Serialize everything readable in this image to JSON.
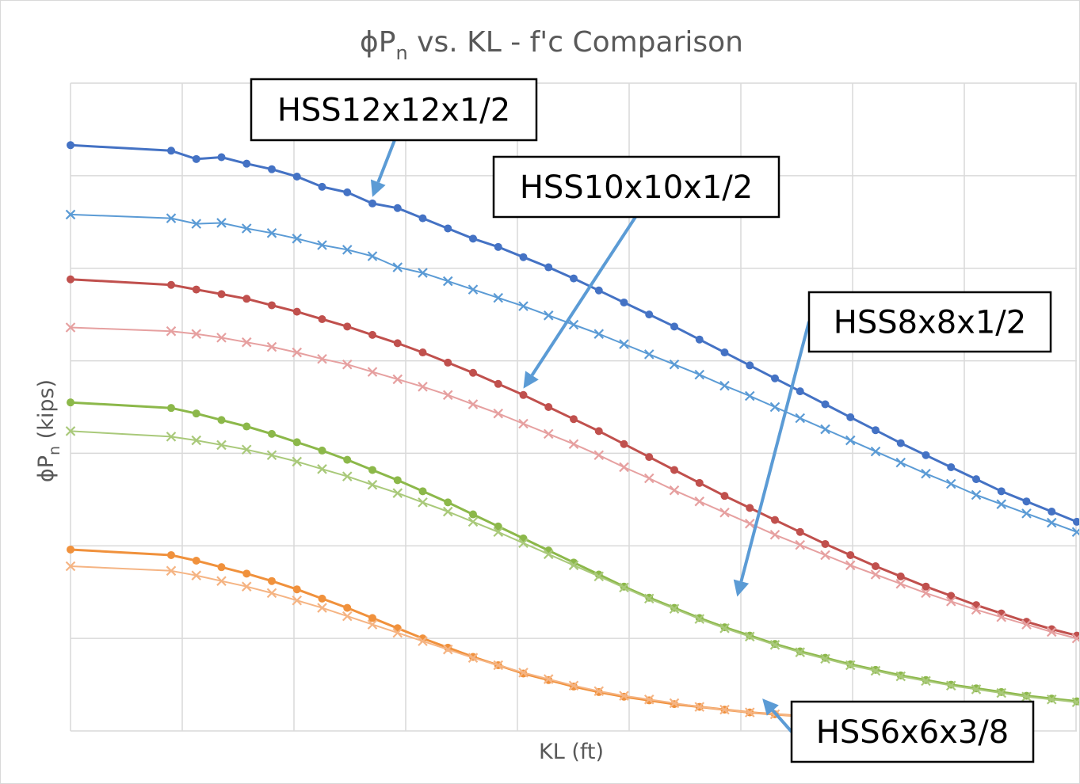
{
  "chart_data": {
    "type": "line",
    "title": {
      "main": "ϕP",
      "sub": "n",
      "rest": " vs. KL - f'c Comparison"
    },
    "xlabel": "KL (ft)",
    "ylabel": {
      "main": "ϕP",
      "sub": "n",
      "rest": " (kips)"
    },
    "grid": true,
    "colors": {
      "HSS12x12x1/2": "#4472c4",
      "HSS12x12x1/2 (x)": "#5b9bd5",
      "HSS10x10x1/2": "#c0504d",
      "HSS10x10x1/2 (x)": "#e6a0a0",
      "HSS8x8x1/2": "#8cb84a",
      "HSS8x8x1/2 (x)": "#a9c97a",
      "HSS6x6x3/8": "#f0913c",
      "HSS6x6x3/8 (x)": "#f5b483"
    },
    "series": [
      {
        "group": "HSS12x12x1/2",
        "marker": "dot",
        "color": "#4472c4",
        "values": [
          [
            0,
            6.33
          ],
          [
            0.8,
            6.27
          ],
          [
            1,
            6.18
          ],
          [
            1.2,
            6.2
          ],
          [
            1.4,
            6.13
          ],
          [
            1.6,
            6.07
          ],
          [
            1.8,
            5.99
          ],
          [
            2,
            5.88
          ],
          [
            2.2,
            5.82
          ],
          [
            2.4,
            5.7
          ],
          [
            2.6,
            5.65
          ],
          [
            2.8,
            5.54
          ],
          [
            3,
            5.43
          ],
          [
            3.2,
            5.32
          ],
          [
            3.4,
            5.23
          ],
          [
            3.6,
            5.12
          ],
          [
            3.8,
            5.01
          ],
          [
            4,
            4.89
          ],
          [
            4.2,
            4.76
          ],
          [
            4.4,
            4.63
          ],
          [
            4.6,
            4.5
          ],
          [
            4.8,
            4.37
          ],
          [
            5,
            4.23
          ],
          [
            5.2,
            4.09
          ],
          [
            5.4,
            3.95
          ],
          [
            5.6,
            3.81
          ],
          [
            5.8,
            3.67
          ],
          [
            6,
            3.53
          ],
          [
            6.2,
            3.39
          ],
          [
            6.4,
            3.25
          ],
          [
            6.6,
            3.11
          ],
          [
            6.8,
            2.98
          ],
          [
            7,
            2.85
          ],
          [
            7.2,
            2.72
          ],
          [
            7.4,
            2.59
          ],
          [
            7.6,
            2.48
          ],
          [
            7.8,
            2.37
          ],
          [
            8,
            2.26
          ]
        ]
      },
      {
        "group": "HSS12x12x1/2",
        "marker": "cross",
        "color": "#5b9bd5",
        "values": [
          [
            0,
            5.58
          ],
          [
            0.8,
            5.54
          ],
          [
            1,
            5.48
          ],
          [
            1.2,
            5.49
          ],
          [
            1.4,
            5.43
          ],
          [
            1.6,
            5.38
          ],
          [
            1.8,
            5.32
          ],
          [
            2,
            5.25
          ],
          [
            2.2,
            5.2
          ],
          [
            2.4,
            5.13
          ],
          [
            2.6,
            5.01
          ],
          [
            2.8,
            4.95
          ],
          [
            3,
            4.86
          ],
          [
            3.2,
            4.77
          ],
          [
            3.4,
            4.68
          ],
          [
            3.6,
            4.59
          ],
          [
            3.8,
            4.49
          ],
          [
            4,
            4.39
          ],
          [
            4.2,
            4.29
          ],
          [
            4.4,
            4.18
          ],
          [
            4.6,
            4.07
          ],
          [
            4.8,
            3.96
          ],
          [
            5,
            3.85
          ],
          [
            5.2,
            3.73
          ],
          [
            5.4,
            3.62
          ],
          [
            5.6,
            3.5
          ],
          [
            5.8,
            3.38
          ],
          [
            6,
            3.26
          ],
          [
            6.2,
            3.14
          ],
          [
            6.4,
            3.02
          ],
          [
            6.6,
            2.9
          ],
          [
            6.8,
            2.78
          ],
          [
            7,
            2.67
          ],
          [
            7.2,
            2.55
          ],
          [
            7.4,
            2.45
          ],
          [
            7.6,
            2.35
          ],
          [
            7.8,
            2.25
          ],
          [
            8,
            2.15
          ]
        ]
      },
      {
        "group": "HSS10x10x1/2",
        "marker": "dot",
        "color": "#c0504d",
        "values": [
          [
            0,
            4.88
          ],
          [
            0.8,
            4.82
          ],
          [
            1,
            4.77
          ],
          [
            1.2,
            4.72
          ],
          [
            1.4,
            4.67
          ],
          [
            1.6,
            4.6
          ],
          [
            1.8,
            4.53
          ],
          [
            2,
            4.45
          ],
          [
            2.2,
            4.37
          ],
          [
            2.4,
            4.28
          ],
          [
            2.6,
            4.19
          ],
          [
            2.8,
            4.09
          ],
          [
            3,
            3.98
          ],
          [
            3.2,
            3.87
          ],
          [
            3.4,
            3.75
          ],
          [
            3.6,
            3.63
          ],
          [
            3.8,
            3.5
          ],
          [
            4,
            3.37
          ],
          [
            4.2,
            3.24
          ],
          [
            4.4,
            3.1
          ],
          [
            4.6,
            2.96
          ],
          [
            4.8,
            2.82
          ],
          [
            5,
            2.68
          ],
          [
            5.2,
            2.54
          ],
          [
            5.4,
            2.41
          ],
          [
            5.6,
            2.28
          ],
          [
            5.8,
            2.15
          ],
          [
            6,
            2.02
          ],
          [
            6.2,
            1.9
          ],
          [
            6.4,
            1.78
          ],
          [
            6.6,
            1.67
          ],
          [
            6.8,
            1.56
          ],
          [
            7,
            1.46
          ],
          [
            7.2,
            1.36
          ],
          [
            7.4,
            1.27
          ],
          [
            7.6,
            1.18
          ],
          [
            7.8,
            1.1
          ],
          [
            8,
            1.03
          ]
        ]
      },
      {
        "group": "HSS10x10x1/2",
        "marker": "cross",
        "color": "#e6a0a0",
        "values": [
          [
            0,
            4.36
          ],
          [
            0.8,
            4.32
          ],
          [
            1,
            4.29
          ],
          [
            1.2,
            4.25
          ],
          [
            1.4,
            4.2
          ],
          [
            1.6,
            4.15
          ],
          [
            1.8,
            4.09
          ],
          [
            2,
            4.02
          ],
          [
            2.2,
            3.96
          ],
          [
            2.4,
            3.88
          ],
          [
            2.6,
            3.8
          ],
          [
            2.8,
            3.72
          ],
          [
            3,
            3.63
          ],
          [
            3.2,
            3.53
          ],
          [
            3.4,
            3.43
          ],
          [
            3.6,
            3.32
          ],
          [
            3.8,
            3.21
          ],
          [
            4,
            3.1
          ],
          [
            4.2,
            2.98
          ],
          [
            4.4,
            2.85
          ],
          [
            4.6,
            2.73
          ],
          [
            4.8,
            2.6
          ],
          [
            5,
            2.48
          ],
          [
            5.2,
            2.36
          ],
          [
            5.4,
            2.24
          ],
          [
            5.6,
            2.12
          ],
          [
            5.8,
            2.01
          ],
          [
            6,
            1.9
          ],
          [
            6.2,
            1.79
          ],
          [
            6.4,
            1.69
          ],
          [
            6.6,
            1.59
          ],
          [
            6.8,
            1.49
          ],
          [
            7,
            1.4
          ],
          [
            7.2,
            1.31
          ],
          [
            7.4,
            1.23
          ],
          [
            7.6,
            1.15
          ],
          [
            7.8,
            1.07
          ],
          [
            8,
            1.0
          ]
        ]
      },
      {
        "group": "HSS8x8x1/2",
        "marker": "dot",
        "color": "#8cb84a",
        "values": [
          [
            0,
            3.55
          ],
          [
            0.8,
            3.49
          ],
          [
            1,
            3.43
          ],
          [
            1.2,
            3.36
          ],
          [
            1.4,
            3.29
          ],
          [
            1.6,
            3.21
          ],
          [
            1.8,
            3.12
          ],
          [
            2,
            3.03
          ],
          [
            2.2,
            2.93
          ],
          [
            2.4,
            2.82
          ],
          [
            2.6,
            2.71
          ],
          [
            2.8,
            2.59
          ],
          [
            3,
            2.47
          ],
          [
            3.2,
            2.34
          ],
          [
            3.4,
            2.21
          ],
          [
            3.6,
            2.08
          ],
          [
            3.8,
            1.95
          ],
          [
            4,
            1.82
          ],
          [
            4.2,
            1.69
          ],
          [
            4.4,
            1.56
          ],
          [
            4.6,
            1.44
          ],
          [
            4.8,
            1.33
          ],
          [
            5,
            1.22
          ],
          [
            5.2,
            1.12
          ],
          [
            5.4,
            1.03
          ],
          [
            5.6,
            0.94
          ],
          [
            5.8,
            0.86
          ],
          [
            6,
            0.79
          ],
          [
            6.2,
            0.72
          ],
          [
            6.4,
            0.66
          ],
          [
            6.6,
            0.6
          ],
          [
            6.8,
            0.55
          ],
          [
            7,
            0.5
          ],
          [
            7.2,
            0.46
          ],
          [
            7.4,
            0.42
          ],
          [
            7.6,
            0.38
          ],
          [
            7.8,
            0.35
          ],
          [
            8,
            0.32
          ]
        ]
      },
      {
        "group": "HSS8x8x1/2",
        "marker": "cross",
        "color": "#a9c97a",
        "values": [
          [
            0,
            3.24
          ],
          [
            0.8,
            3.18
          ],
          [
            1,
            3.14
          ],
          [
            1.2,
            3.09
          ],
          [
            1.4,
            3.04
          ],
          [
            1.6,
            2.98
          ],
          [
            1.8,
            2.91
          ],
          [
            2,
            2.83
          ],
          [
            2.2,
            2.75
          ],
          [
            2.4,
            2.66
          ],
          [
            2.6,
            2.57
          ],
          [
            2.8,
            2.47
          ],
          [
            3,
            2.37
          ],
          [
            3.2,
            2.26
          ],
          [
            3.4,
            2.15
          ],
          [
            3.6,
            2.03
          ],
          [
            3.8,
            1.91
          ],
          [
            4,
            1.79
          ],
          [
            4.2,
            1.67
          ],
          [
            4.4,
            1.55
          ],
          [
            4.6,
            1.43
          ],
          [
            4.8,
            1.32
          ],
          [
            5,
            1.21
          ],
          [
            5.2,
            1.11
          ],
          [
            5.4,
            1.02
          ],
          [
            5.6,
            0.93
          ],
          [
            5.8,
            0.85
          ],
          [
            6,
            0.78
          ],
          [
            6.2,
            0.71
          ],
          [
            6.4,
            0.65
          ],
          [
            6.6,
            0.59
          ],
          [
            6.8,
            0.54
          ],
          [
            7,
            0.49
          ],
          [
            7.2,
            0.45
          ],
          [
            7.4,
            0.41
          ],
          [
            7.6,
            0.37
          ],
          [
            7.8,
            0.34
          ],
          [
            8,
            0.31
          ]
        ]
      },
      {
        "group": "HSS6x6x3/8",
        "marker": "dot",
        "color": "#f0913c",
        "values": [
          [
            0,
            1.96
          ],
          [
            0.8,
            1.9
          ],
          [
            1,
            1.84
          ],
          [
            1.2,
            1.77
          ],
          [
            1.4,
            1.7
          ],
          [
            1.6,
            1.62
          ],
          [
            1.8,
            1.53
          ],
          [
            2,
            1.43
          ],
          [
            2.2,
            1.33
          ],
          [
            2.4,
            1.22
          ],
          [
            2.6,
            1.11
          ],
          [
            2.8,
            1.0
          ],
          [
            3,
            0.9
          ],
          [
            3.2,
            0.8
          ],
          [
            3.4,
            0.71
          ],
          [
            3.6,
            0.62
          ],
          [
            3.8,
            0.55
          ],
          [
            4,
            0.48
          ],
          [
            4.2,
            0.42
          ],
          [
            4.4,
            0.37
          ],
          [
            4.6,
            0.33
          ],
          [
            4.8,
            0.29
          ],
          [
            5,
            0.26
          ],
          [
            5.2,
            0.23
          ],
          [
            5.4,
            0.2
          ],
          [
            5.6,
            0.18
          ],
          [
            5.8,
            0.16
          ],
          [
            6,
            0.14
          ],
          [
            6.2,
            0.12
          ],
          [
            6.4,
            0.11
          ],
          [
            6.6,
            0.1
          ],
          [
            6.8,
            0.09
          ],
          [
            7,
            0.08
          ]
        ]
      },
      {
        "group": "HSS6x6x3/8",
        "marker": "cross",
        "color": "#f5b483",
        "values": [
          [
            0,
            1.78
          ],
          [
            0.8,
            1.73
          ],
          [
            1,
            1.68
          ],
          [
            1.2,
            1.62
          ],
          [
            1.4,
            1.56
          ],
          [
            1.6,
            1.49
          ],
          [
            1.8,
            1.41
          ],
          [
            2,
            1.33
          ],
          [
            2.2,
            1.24
          ],
          [
            2.4,
            1.15
          ],
          [
            2.6,
            1.06
          ],
          [
            2.8,
            0.97
          ],
          [
            3,
            0.88
          ],
          [
            3.2,
            0.79
          ],
          [
            3.4,
            0.71
          ],
          [
            3.6,
            0.63
          ],
          [
            3.8,
            0.56
          ],
          [
            4,
            0.49
          ],
          [
            4.2,
            0.43
          ],
          [
            4.4,
            0.38
          ],
          [
            4.6,
            0.34
          ],
          [
            4.8,
            0.3
          ],
          [
            5,
            0.26
          ],
          [
            5.2,
            0.23
          ],
          [
            5.4,
            0.2
          ],
          [
            5.6,
            0.18
          ],
          [
            5.8,
            0.16
          ],
          [
            6,
            0.14
          ],
          [
            6.2,
            0.12
          ],
          [
            6.4,
            0.11
          ],
          [
            6.6,
            0.1
          ],
          [
            6.8,
            0.09
          ],
          [
            7,
            0.08
          ]
        ]
      }
    ],
    "xlim": [
      0,
      8
    ],
    "ylim": [
      0,
      7
    ],
    "annotations": [
      {
        "text": "HSS12x12x1/2",
        "target": [
          2.4,
          5.77
        ]
      },
      {
        "text": "HSS10x10x1/2",
        "target": [
          3.6,
          3.7
        ]
      },
      {
        "text": "HSS8x8x1/2",
        "target": [
          5.3,
          1.45
        ]
      },
      {
        "text": "HSS6x6x3/8",
        "target": [
          5.5,
          0.35
        ]
      }
    ]
  }
}
